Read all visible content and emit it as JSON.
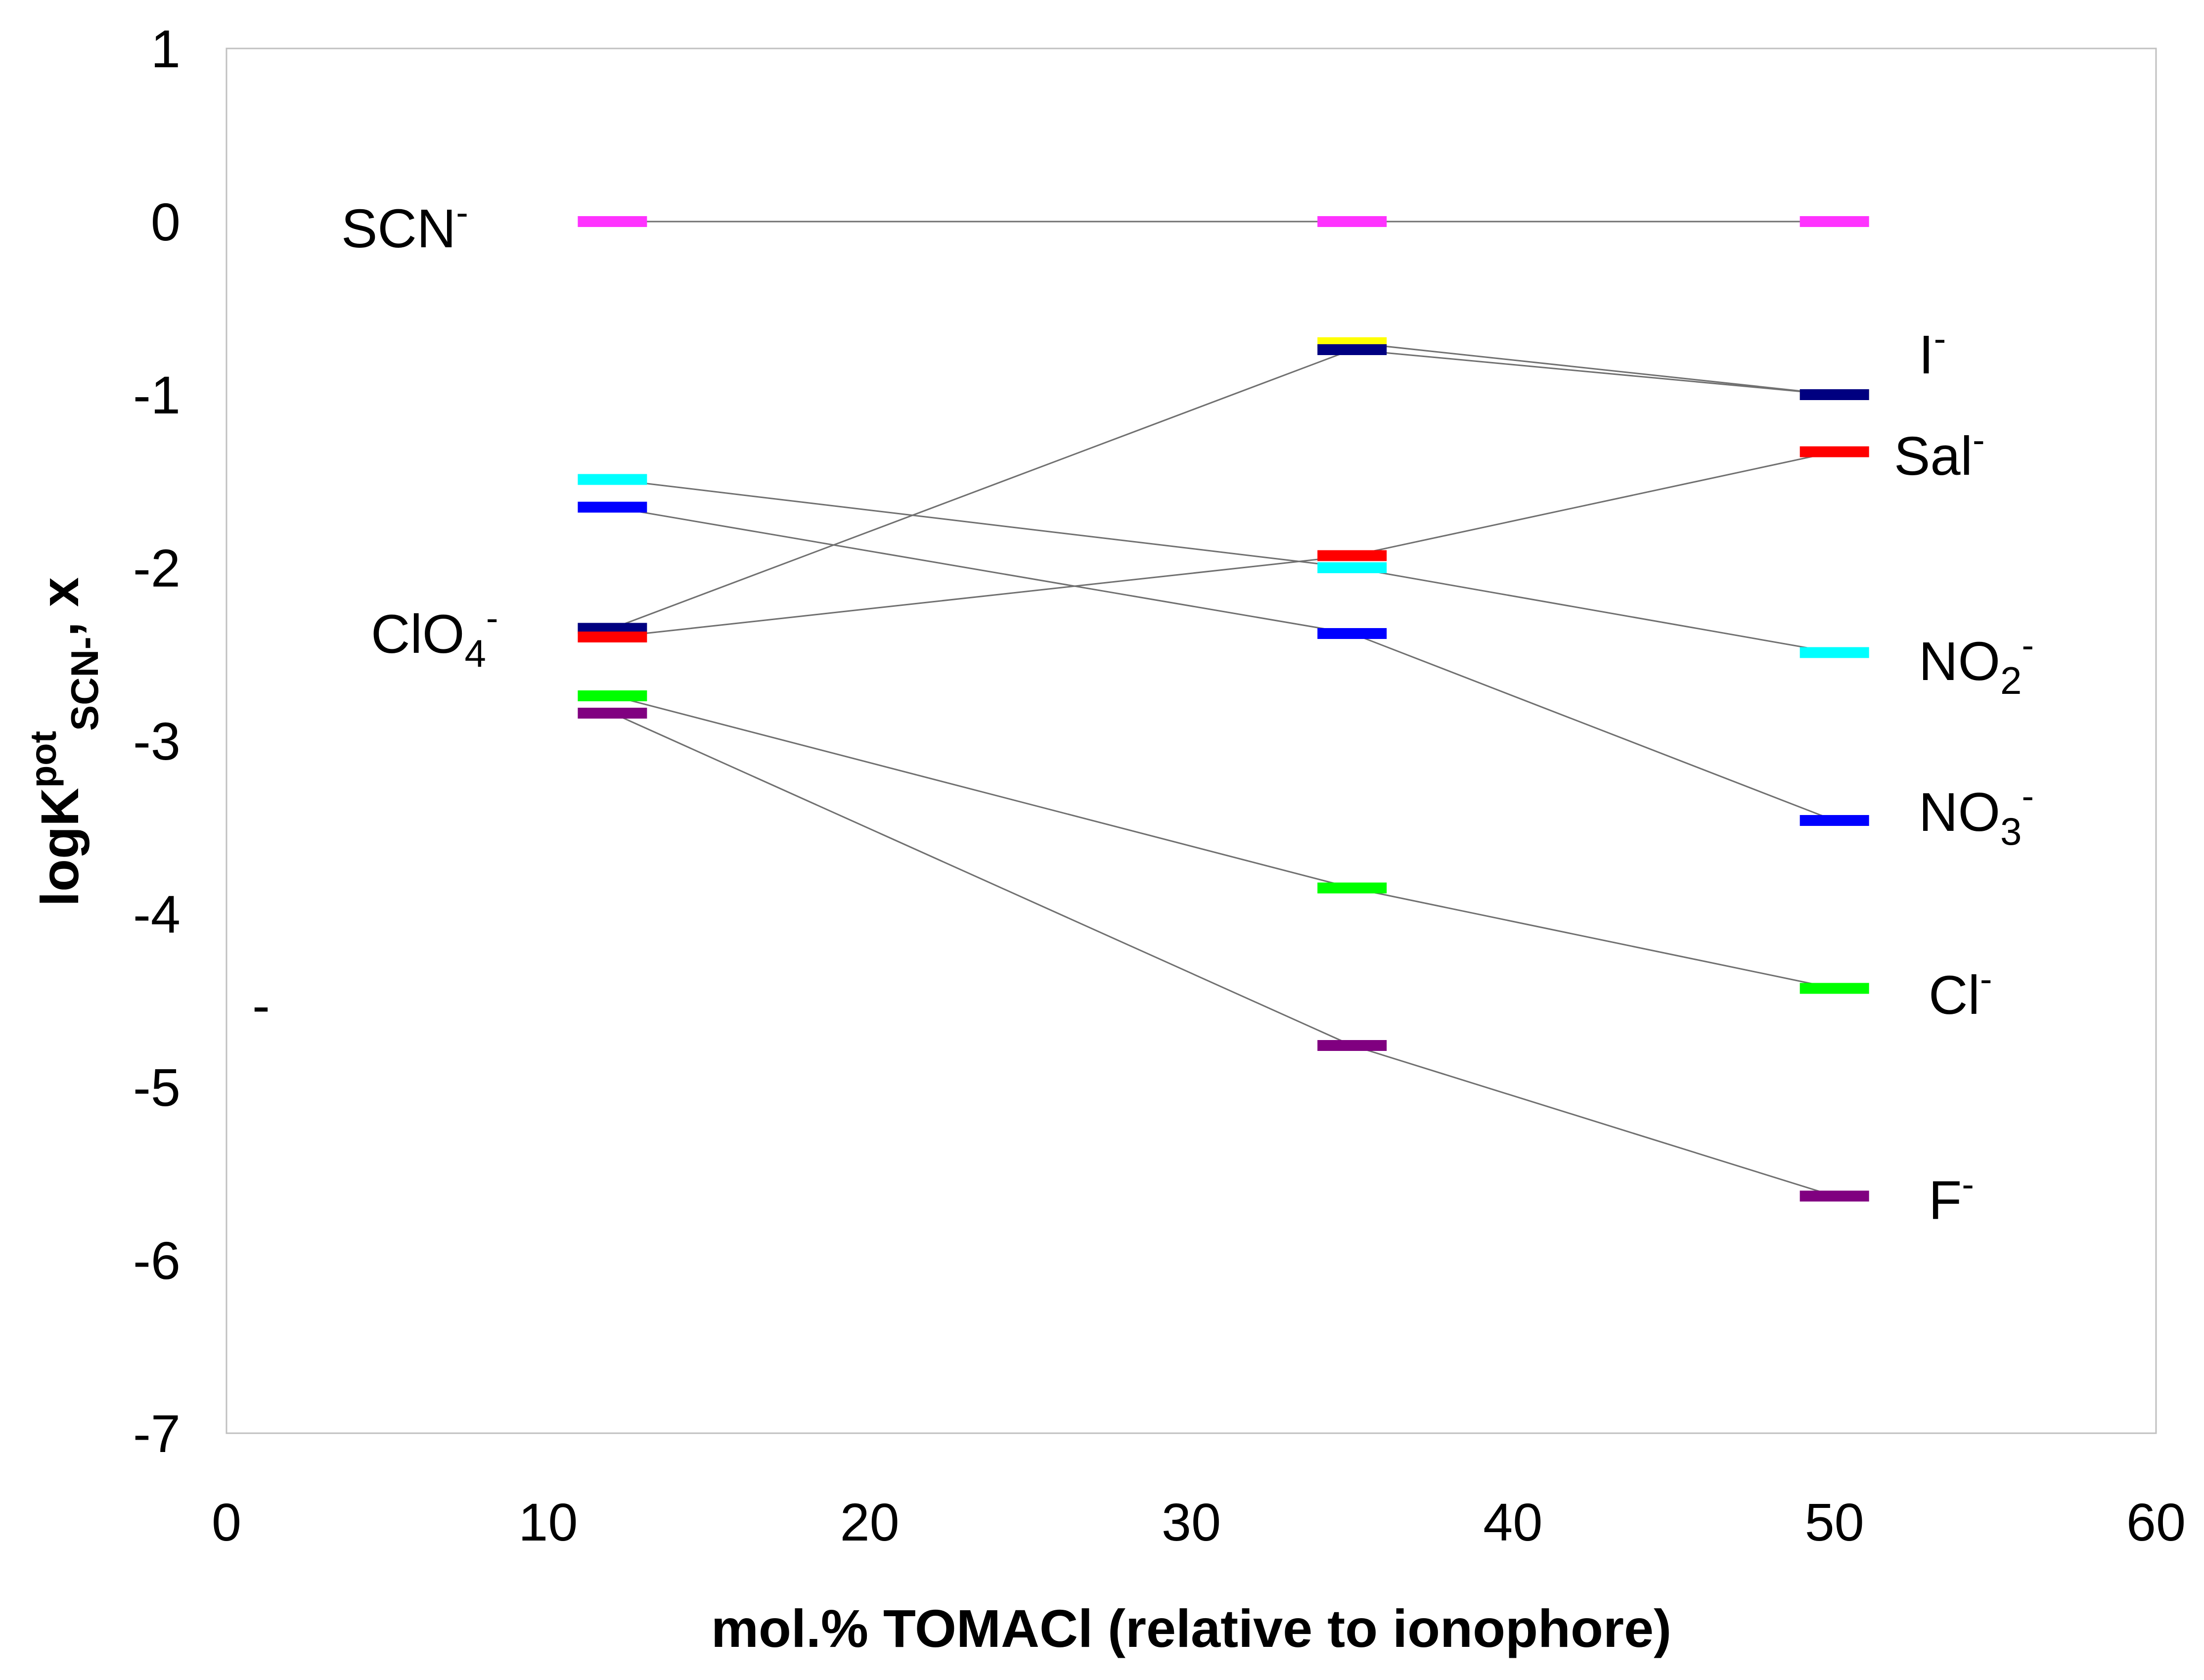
{
  "chart_data": {
    "type": "line",
    "xlabel": "mol.% TOMACl (relative to ionophore)",
    "ylabel": {
      "main": "logK",
      "sup": "pot",
      "sub": "SCN-",
      "tail": ", x"
    },
    "xlim": [
      0,
      60
    ],
    "ylim": [
      -7,
      1
    ],
    "x_ticks": [
      "0",
      "10",
      "20",
      "30",
      "40",
      "50",
      "60"
    ],
    "y_ticks": [
      "1",
      "0",
      "-1",
      "-2",
      "-3",
      "-4",
      "-5",
      "-6",
      "-7"
    ],
    "grid": false,
    "stray_text": "-",
    "x": [
      12,
      35,
      50
    ],
    "series": [
      {
        "id": "scn",
        "label_parts": [
          {
            "t": "SCN"
          },
          {
            "t": "-",
            "k": "sup"
          }
        ],
        "color": "#ff33ff",
        "values": [
          0,
          0,
          0
        ]
      },
      {
        "id": "i",
        "label_parts": [
          {
            "t": "I"
          },
          {
            "t": "-",
            "k": "sup"
          }
        ],
        "color": "#ffff00",
        "values": [
          null,
          -0.7,
          -1.0
        ]
      },
      {
        "id": "clo4",
        "label_parts": [
          {
            "t": "ClO"
          },
          {
            "t": "4",
            "k": "sub"
          },
          {
            "t": "-",
            "k": "sup"
          }
        ],
        "color": "#000080",
        "values": [
          -2.35,
          -0.74,
          -1.0
        ]
      },
      {
        "id": "sal",
        "label_parts": [
          {
            "t": "Sal"
          },
          {
            "t": "-",
            "k": "sup"
          }
        ],
        "color": "#ff0000",
        "values": [
          -2.4,
          -1.93,
          -1.33
        ]
      },
      {
        "id": "no2",
        "label_parts": [
          {
            "t": "NO"
          },
          {
            "t": "2",
            "k": "sub"
          },
          {
            "t": "-",
            "k": "sup"
          }
        ],
        "color": "#00ffff",
        "values": [
          -1.49,
          -2.0,
          -2.49
        ]
      },
      {
        "id": "no3",
        "label_parts": [
          {
            "t": "NO"
          },
          {
            "t": "3",
            "k": "sub"
          },
          {
            "t": "-",
            "k": "sup"
          }
        ],
        "color": "#0000ff",
        "values": [
          -1.65,
          -2.38,
          -3.46
        ]
      },
      {
        "id": "cl",
        "label_parts": [
          {
            "t": "Cl"
          },
          {
            "t": "-",
            "k": "sup"
          }
        ],
        "color": "#00ff00",
        "values": [
          -2.74,
          -3.85,
          -4.43
        ]
      },
      {
        "id": "f",
        "label_parts": [
          {
            "t": "F"
          },
          {
            "t": "-",
            "k": "sup"
          }
        ],
        "color": "#800080",
        "values": [
          -2.84,
          -4.76,
          -5.63
        ]
      }
    ],
    "connector_color": "#707070",
    "frame_color": "#c0c0c0"
  }
}
